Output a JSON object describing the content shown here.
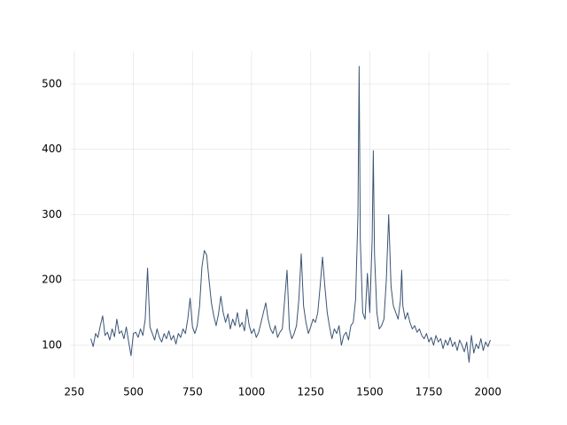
{
  "chart_data": {
    "type": "line",
    "color": "#3a5474",
    "grid": true,
    "x": [
      320,
      330,
      340,
      350,
      360,
      370,
      380,
      390,
      400,
      410,
      420,
      430,
      440,
      450,
      460,
      470,
      480,
      490,
      500,
      510,
      520,
      530,
      540,
      550,
      560,
      570,
      580,
      590,
      600,
      610,
      620,
      630,
      640,
      650,
      660,
      670,
      680,
      690,
      700,
      710,
      720,
      730,
      740,
      750,
      760,
      770,
      780,
      790,
      800,
      810,
      820,
      830,
      840,
      850,
      860,
      870,
      880,
      890,
      900,
      910,
      920,
      930,
      940,
      950,
      960,
      970,
      980,
      990,
      1000,
      1010,
      1020,
      1030,
      1040,
      1050,
      1060,
      1070,
      1080,
      1090,
      1100,
      1110,
      1120,
      1130,
      1140,
      1150,
      1160,
      1170,
      1180,
      1190,
      1200,
      1210,
      1220,
      1230,
      1240,
      1250,
      1260,
      1270,
      1280,
      1290,
      1300,
      1310,
      1320,
      1330,
      1340,
      1350,
      1360,
      1370,
      1380,
      1390,
      1400,
      1410,
      1420,
      1430,
      1440,
      1450,
      1455,
      1460,
      1470,
      1480,
      1490,
      1500,
      1510,
      1515,
      1520,
      1530,
      1540,
      1550,
      1560,
      1570,
      1580,
      1590,
      1600,
      1610,
      1620,
      1630,
      1635,
      1640,
      1650,
      1660,
      1670,
      1680,
      1690,
      1700,
      1710,
      1720,
      1730,
      1740,
      1750,
      1760,
      1770,
      1780,
      1790,
      1800,
      1810,
      1820,
      1830,
      1840,
      1850,
      1860,
      1870,
      1880,
      1890,
      1900,
      1910,
      1920,
      1930,
      1940,
      1950,
      1960,
      1970,
      1980,
      1990,
      2000,
      2010
    ],
    "values": [
      110,
      98,
      118,
      112,
      130,
      145,
      115,
      120,
      108,
      125,
      113,
      140,
      118,
      122,
      110,
      128,
      105,
      84,
      118,
      120,
      112,
      125,
      115,
      140,
      218,
      128,
      118,
      108,
      125,
      112,
      105,
      118,
      110,
      122,
      108,
      115,
      102,
      118,
      112,
      125,
      118,
      140,
      172,
      128,
      118,
      130,
      160,
      220,
      245,
      238,
      200,
      165,
      145,
      130,
      148,
      175,
      150,
      135,
      148,
      125,
      140,
      130,
      150,
      128,
      135,
      122,
      155,
      130,
      118,
      125,
      112,
      120,
      135,
      150,
      165,
      140,
      125,
      118,
      130,
      112,
      120,
      125,
      170,
      215,
      125,
      110,
      118,
      130,
      170,
      240,
      160,
      135,
      118,
      128,
      140,
      135,
      150,
      190,
      235,
      190,
      150,
      128,
      110,
      125,
      118,
      130,
      100,
      115,
      120,
      108,
      130,
      135,
      170,
      300,
      527,
      260,
      150,
      140,
      210,
      150,
      260,
      398,
      240,
      150,
      125,
      130,
      140,
      200,
      300,
      190,
      160,
      150,
      140,
      170,
      215,
      160,
      140,
      150,
      135,
      125,
      130,
      120,
      125,
      115,
      110,
      118,
      105,
      112,
      100,
      115,
      105,
      110,
      95,
      108,
      100,
      112,
      98,
      105,
      92,
      108,
      100,
      90,
      105,
      74,
      115,
      88,
      102,
      95,
      110,
      92,
      105,
      98,
      108
    ],
    "xlim": [
      235.5,
      2094.5
    ],
    "ylim": [
      49.5,
      550.5
    ],
    "xticks": [
      250,
      500,
      750,
      1000,
      1250,
      1500,
      1750,
      2000
    ],
    "yticks": [
      100,
      200,
      300,
      400,
      500
    ]
  }
}
